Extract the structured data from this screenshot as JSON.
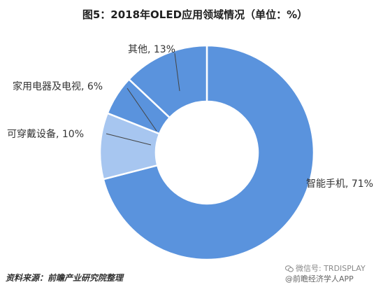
{
  "chart_data": {
    "type": "pie",
    "variant": "donut",
    "title": "图5：2018年OLED应用领域情况（单位：%）",
    "categories": [
      "智能手机",
      "可穿戴设备",
      "家用电器及电视",
      "其他"
    ],
    "values": [
      71,
      10,
      6,
      13
    ],
    "labels": [
      "智能手机, 71%",
      "可穿戴设备, 10%",
      "家用电器及电视, 6%",
      "其他, 13%"
    ],
    "colors": [
      "#5a93dd",
      "#a7c6f0",
      "#5a93dd",
      "#5a93dd"
    ],
    "start": "12 o'clock",
    "direction": "clockwise"
  },
  "footer": {
    "source": "资料来源：前瞻产业研究院整理",
    "wechat_line1": "微信号: TRDISPLAY",
    "wechat_line2": "@前瞻经济学人APP"
  },
  "colors": {
    "slice_blue": "#5a93dd",
    "slice_light": "#a7c6f0",
    "text": "#333333"
  }
}
